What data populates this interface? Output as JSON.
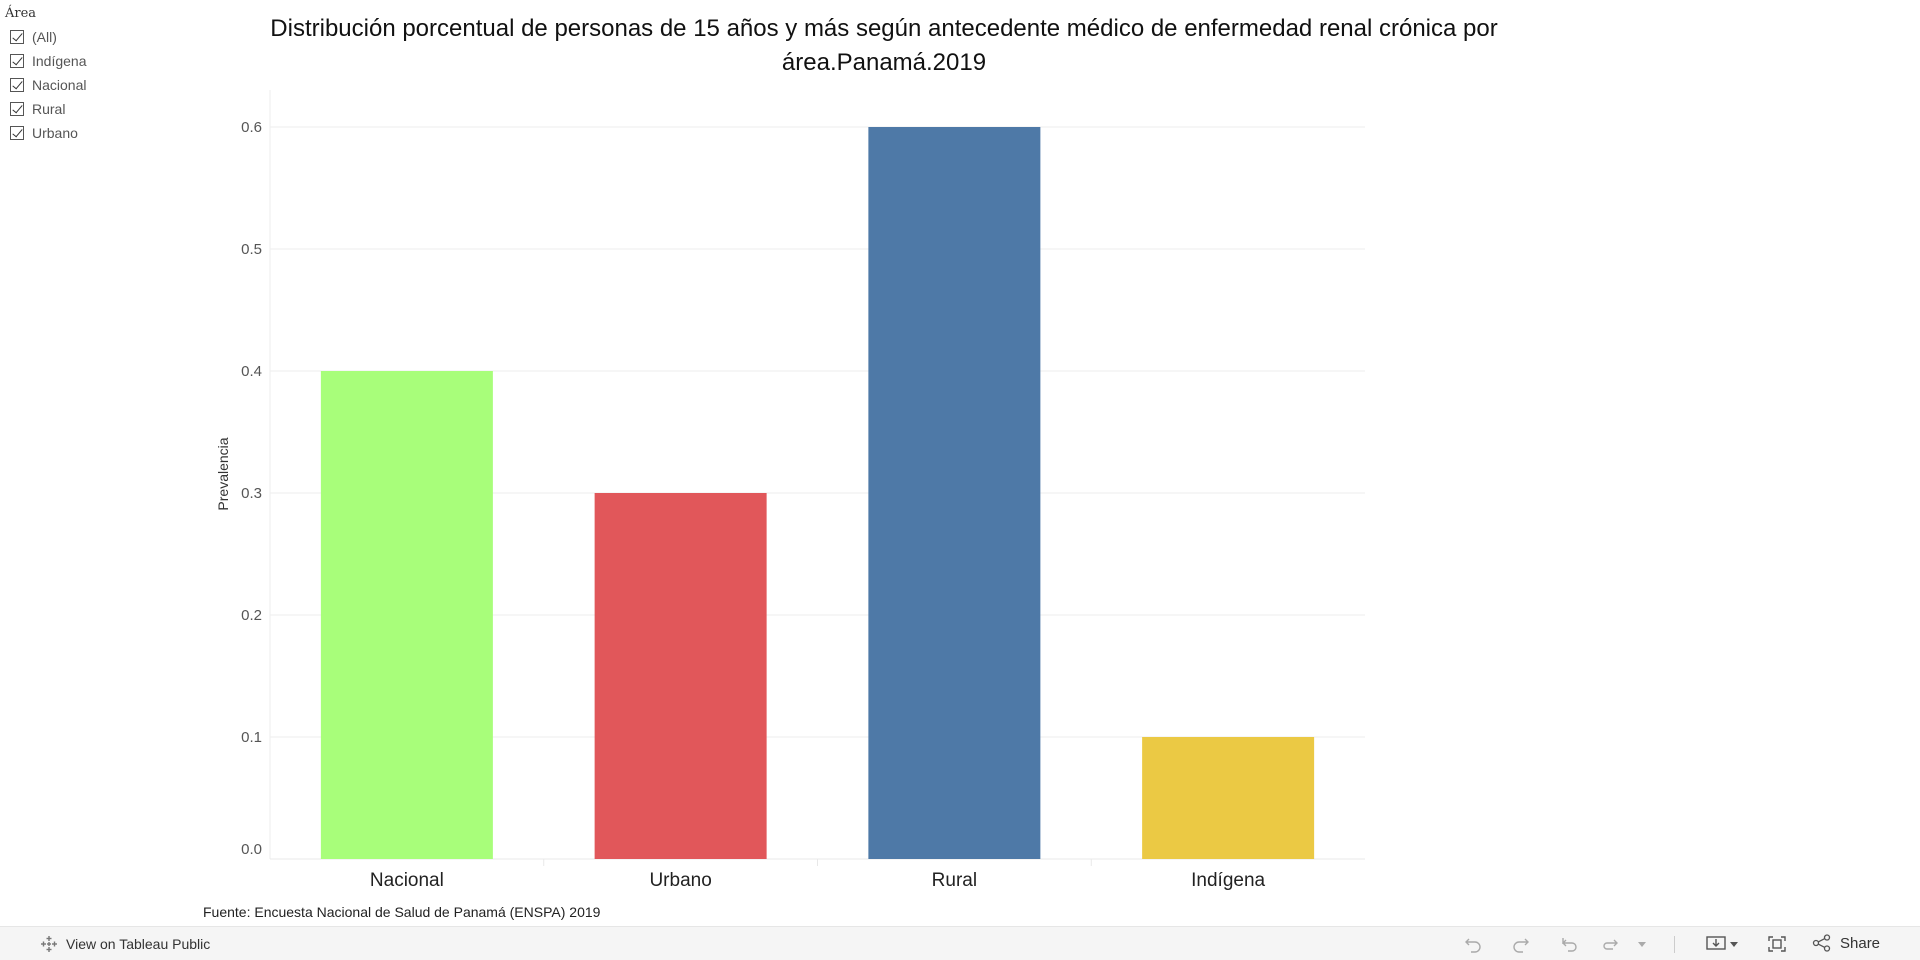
{
  "filter": {
    "title": "Área",
    "items": [
      "(All)",
      "Indígena",
      "Nacional",
      "Rural",
      "Urbano"
    ]
  },
  "chart_data": {
    "type": "bar",
    "title": "Distribución porcentual de personas de 15 años y más según antecedente médico de enfermedad renal crónica por área.Panamá.2019",
    "categories": [
      "Nacional",
      "Urbano",
      "Rural",
      "Indígena"
    ],
    "values": [
      0.4,
      0.3,
      0.6,
      0.1
    ],
    "colors": [
      "#a8fe7a",
      "#e1575a",
      "#4e79a7",
      "#ebc944"
    ],
    "xlabel": "",
    "ylabel": "Prevalencia",
    "ylim": [
      0,
      0.6
    ],
    "yticks": [
      "0.0",
      "0.1",
      "0.2",
      "0.3",
      "0.4",
      "0.5",
      "0.6"
    ],
    "grid": true
  },
  "source": "Fuente: Encuesta Nacional de Salud de Panamá (ENSPA) 2019",
  "footer": {
    "view_label": "View on Tableau Public",
    "share_label": "Share"
  }
}
